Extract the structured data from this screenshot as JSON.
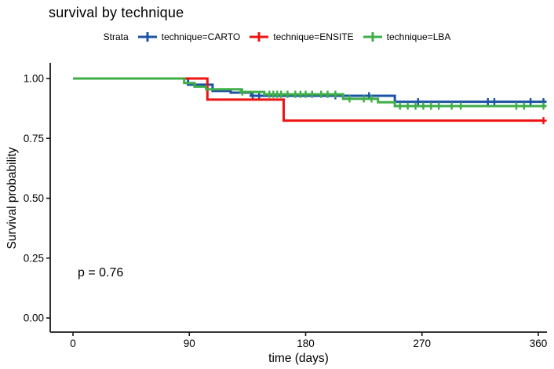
{
  "title": "survival by technique",
  "legend": {
    "label": "Strata",
    "items": [
      {
        "label": "technique=CARTO",
        "color": "#1d53a4"
      },
      {
        "label": "technique=ENSITE",
        "color": "#ee1313"
      },
      {
        "label": "technique=LBA",
        "color": "#3fae49"
      }
    ]
  },
  "chart_data": {
    "type": "line",
    "variant": "kaplan_meier_step",
    "title": "survival by technique",
    "xlabel": "time (days)",
    "ylabel": "Survival probability",
    "xticks": [
      0,
      90,
      180,
      270,
      360
    ],
    "yticks": [
      0.0,
      0.25,
      0.5,
      0.75,
      1.0
    ],
    "xlim": [
      0,
      372
    ],
    "ylim": [
      0,
      1.0
    ],
    "grid": false,
    "legend_position": "top",
    "p_value": "p = 0.76",
    "axis_color": "#1a1a1a",
    "series": [
      {
        "name": "technique=CARTO",
        "color": "#1d53a4",
        "steps": [
          [
            0,
            1.0
          ],
          [
            89,
            0.974
          ],
          [
            108,
            0.948
          ],
          [
            122,
            0.941
          ],
          [
            138,
            0.928
          ],
          [
            249,
            0.903
          ]
        ],
        "end_time": 366,
        "censor_times": [
          139,
          144,
          203,
          229,
          267,
          321,
          326,
          354,
          364
        ]
      },
      {
        "name": "technique=ENSITE",
        "color": "#ee1313",
        "steps": [
          [
            0,
            1.0
          ],
          [
            104,
            0.912
          ],
          [
            163,
            0.824
          ]
        ],
        "end_time": 365,
        "censor_times": [
          364
        ]
      },
      {
        "name": "technique=LBA",
        "color": "#3fae49",
        "steps": [
          [
            0,
            1.0
          ],
          [
            86,
            0.981
          ],
          [
            94,
            0.966
          ],
          [
            103,
            0.955
          ],
          [
            130,
            0.944
          ],
          [
            148,
            0.934
          ],
          [
            209,
            0.915
          ],
          [
            236,
            0.901
          ],
          [
            249,
            0.885
          ]
        ],
        "end_time": 366,
        "censor_times": [
          131,
          152,
          155,
          158,
          161,
          166,
          172,
          176,
          180,
          185,
          192,
          197,
          203,
          214,
          225,
          231,
          253,
          259,
          265,
          271,
          277,
          283,
          293,
          300,
          343,
          349,
          364
        ]
      }
    ]
  }
}
